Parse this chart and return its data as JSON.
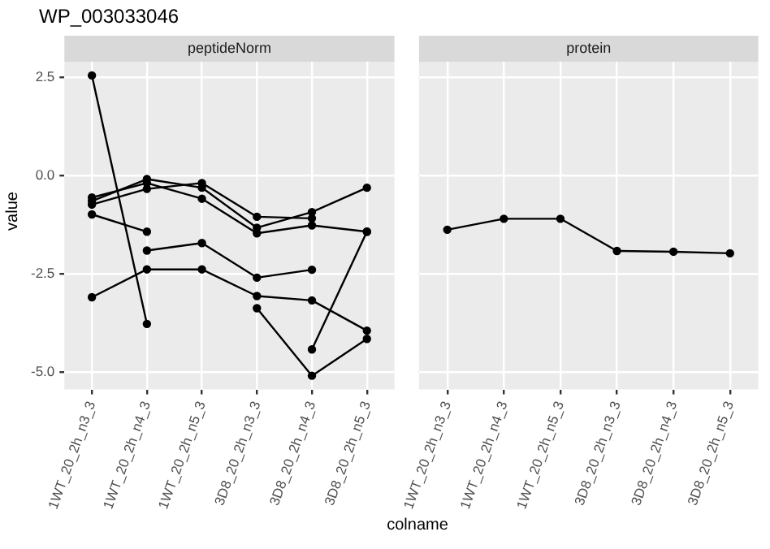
{
  "chart_data": [
    {
      "type": "line",
      "title": "WP_003033046",
      "subtitle": "peptideNorm",
      "xlabel": "colname",
      "ylabel": "value",
      "categories": [
        "1WT_20_2h_n3_3",
        "1WT_20_2h_n4_3",
        "1WT_20_2h_n5_3",
        "3D8_20_2h_n3_3",
        "3D8_20_2h_n4_3",
        "3D8_20_2h_n5_3"
      ],
      "series": [
        {
          "color": "#000000",
          "values": [
            2.55,
            -3.78,
            null,
            null,
            null,
            null
          ]
        },
        {
          "color": "#000000",
          "values": [
            -3.1,
            -2.39,
            -2.39,
            -3.07,
            -3.18,
            -3.95
          ]
        },
        {
          "color": "#000000",
          "values": [
            -0.99,
            -1.43,
            null,
            null,
            null,
            null
          ]
        },
        {
          "color": "#000000",
          "values": [
            null,
            -1.91,
            -1.72,
            -2.6,
            -2.4,
            null
          ]
        },
        {
          "color": "#000000",
          "values": [
            null,
            null,
            null,
            -3.38,
            -5.1,
            -4.16
          ]
        },
        {
          "color": "#000000",
          "values": [
            null,
            null,
            null,
            null,
            -4.43,
            -1.43
          ]
        },
        {
          "color": "#000000",
          "values": [
            -0.56,
            -0.19,
            -0.59,
            -1.47,
            -1.27,
            -1.43
          ]
        },
        {
          "color": "#000000",
          "values": [
            -0.65,
            -0.09,
            -0.31,
            -1.33,
            -0.93,
            -0.31
          ]
        },
        {
          "color": "#000000",
          "values": [
            -0.74,
            -0.34,
            -0.19,
            -1.05,
            -1.09,
            null
          ]
        }
      ],
      "ylim": [
        -5.45,
        2.9
      ],
      "yticks": [
        {
          "value": -5,
          "label": "-5.0"
        },
        {
          "value": -2.5,
          "label": "-2.5"
        },
        {
          "value": 0,
          "label": "0.0"
        },
        {
          "value": 2.5,
          "label": "2.5"
        }
      ],
      "grid": true,
      "marker": "circle"
    },
    {
      "type": "line",
      "subtitle": "protein",
      "categories": [
        "1WT_20_2h_n3_3",
        "1WT_20_2h_n4_3",
        "1WT_20_2h_n5_3",
        "3D8_20_2h_n3_3",
        "3D8_20_2h_n4_3",
        "3D8_20_2h_n5_3"
      ],
      "series": [
        {
          "color": "#000000",
          "values": [
            -1.38,
            -1.1,
            -1.1,
            -1.92,
            -1.94,
            -1.98
          ]
        }
      ],
      "ylim": [
        -5.45,
        2.9
      ],
      "yticks": [
        -5,
        -2.5,
        0,
        2.5
      ],
      "tick_labels": "x",
      "grid": true,
      "marker": "circle"
    }
  ]
}
